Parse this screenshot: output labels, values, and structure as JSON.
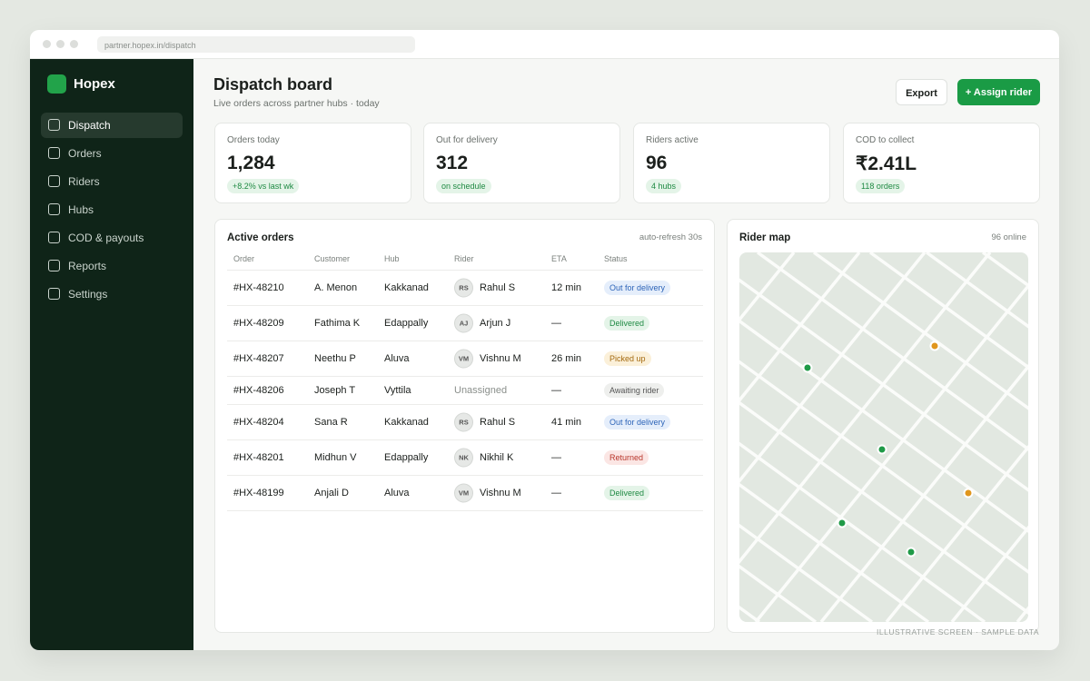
{
  "browser": {
    "url": "partner.hopex.in/dispatch"
  },
  "sidebar": {
    "brand": "Hopex",
    "nav": [
      "Dispatch",
      "Orders",
      "Riders",
      "Hubs",
      "COD & payouts",
      "Reports",
      "Settings"
    ]
  },
  "header": {
    "title": "Dispatch board",
    "subtitle": "Live orders across partner hubs · today",
    "buttons": [
      "Export",
      "+ Assign rider"
    ]
  },
  "kpis": [
    {
      "label": "Orders today",
      "value": "1,284",
      "note": "+8.2% vs last wk"
    },
    {
      "label": "Out for delivery",
      "value": "312",
      "note": "on schedule"
    },
    {
      "label": "Riders active",
      "value": "96",
      "note": "4 hubs"
    },
    {
      "label": "COD to collect",
      "value": "₹2.41L",
      "note": "118 orders"
    }
  ],
  "orders": {
    "title": "Active orders",
    "refresh": "auto-refresh 30s",
    "columns": [
      "Order",
      "Customer",
      "Hub",
      "Rider",
      "ETA",
      "Status"
    ],
    "rows": [
      {
        "order": "#HX-48210",
        "customer": "A. Menon",
        "hub": "Kakkanad",
        "initials": "RS",
        "rider": "Rahul S",
        "eta": "12 min",
        "status": "Out for delivery"
      },
      {
        "order": "#HX-48209",
        "customer": "Fathima K",
        "hub": "Edappally",
        "initials": "AJ",
        "rider": "Arjun J",
        "eta": "—",
        "status": "Delivered"
      },
      {
        "order": "#HX-48207",
        "customer": "Neethu P",
        "hub": "Aluva",
        "initials": "VM",
        "rider": "Vishnu M",
        "eta": "26 min",
        "status": "Picked up"
      },
      {
        "order": "#HX-48206",
        "customer": "Joseph T",
        "hub": "Vyttila",
        "rider": "Unassigned",
        "eta": "—",
        "status": "Awaiting rider"
      },
      {
        "order": "#HX-48204",
        "customer": "Sana R",
        "hub": "Kakkanad",
        "initials": "RS",
        "rider": "Rahul S",
        "eta": "41 min",
        "status": "Out for delivery"
      },
      {
        "order": "#HX-48201",
        "customer": "Midhun V",
        "hub": "Edappally",
        "initials": "NK",
        "rider": "Nikhil K",
        "eta": "—",
        "status": "Returned"
      },
      {
        "order": "#HX-48199",
        "customer": "Anjali D",
        "hub": "Aluva",
        "initials": "VM",
        "rider": "Vishnu M",
        "eta": "—",
        "status": "Delivered"
      }
    ]
  },
  "map": {
    "title": "Rider map",
    "online": "96 online"
  },
  "footer": "ILLUSTRATIVE SCREEN · SAMPLE DATA"
}
